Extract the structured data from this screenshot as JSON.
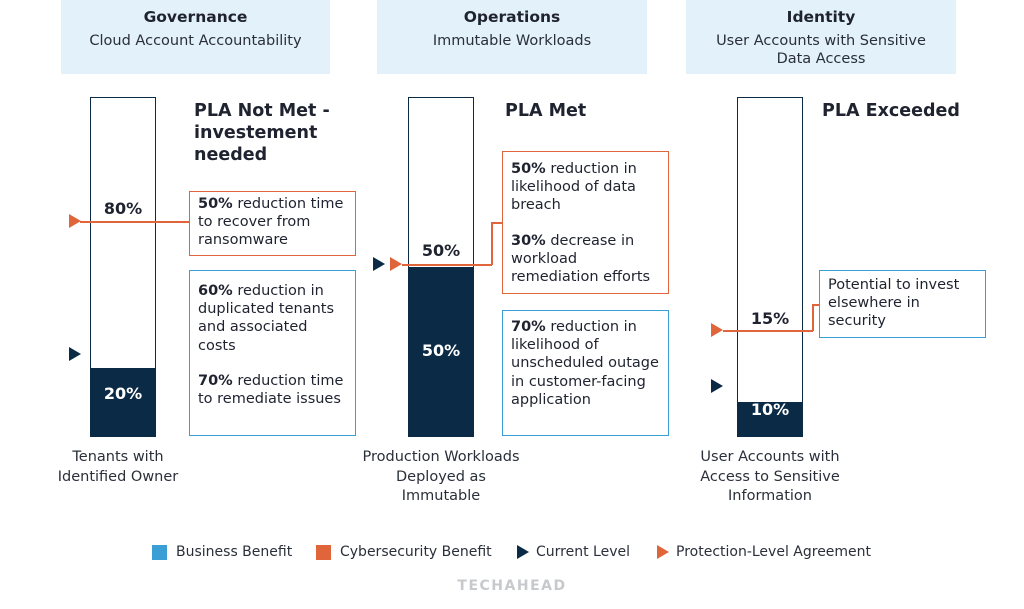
{
  "columns": [
    {
      "header_title": "Governance",
      "header_subtitle": "Cloud Account Accountability",
      "status": "PLA Not Met - investement needed",
      "pla_percent": "80%",
      "current_percent": "20%",
      "current_fraction": 0.2,
      "pla_fraction": 0.8,
      "caption": "Tenants with Identified Owner",
      "cyber_box": [
        {
          "bold": "50%",
          "text": " reduction time to recover from ransomware"
        }
      ],
      "business_box": [
        {
          "bold": "60%",
          "text": " reduction in duplicated tenants and associated costs"
        },
        {
          "bold": "70%",
          "text": " reduction time to remediate issues"
        }
      ]
    },
    {
      "header_title": "Operations",
      "header_subtitle": "Immutable Workloads",
      "status": "PLA Met",
      "pla_percent": "50%",
      "current_percent": "50%",
      "current_fraction": 0.5,
      "pla_fraction": 0.5,
      "caption": "Production Workloads Deployed as Immutable",
      "cyber_box": [
        {
          "bold": "50%",
          "text": " reduction in likelihood of data breach"
        },
        {
          "bold": "30%",
          "text": " decrease in workload remediation efforts"
        }
      ],
      "business_box": [
        {
          "bold": "70%",
          "text": " reduction in likelihood of unscheduled outage in customer-facing application"
        }
      ]
    },
    {
      "header_title": "Identity",
      "header_subtitle": "User Accounts with Sensitive Data Access",
      "status": "PLA Exceeded",
      "pla_percent": "15%",
      "current_percent": "10%",
      "current_fraction": 0.1,
      "pla_fraction": 0.15,
      "caption": "User Accounts with Access to Sensitive Information",
      "business_box": [
        {
          "bold": "",
          "text": "Potential to invest elsewhere in security"
        }
      ]
    }
  ],
  "legend": {
    "business": "Business Benefit",
    "cyber": "Cybersecurity Benefit",
    "current": "Current Level",
    "pla": "Protection-Level Agreement"
  },
  "colors": {
    "navy": "#0b2a45",
    "orange": "#e0653a",
    "blue": "#3b9fd6",
    "header_bg": "#e2f1fa"
  },
  "brand": "TECHAHEAD"
}
